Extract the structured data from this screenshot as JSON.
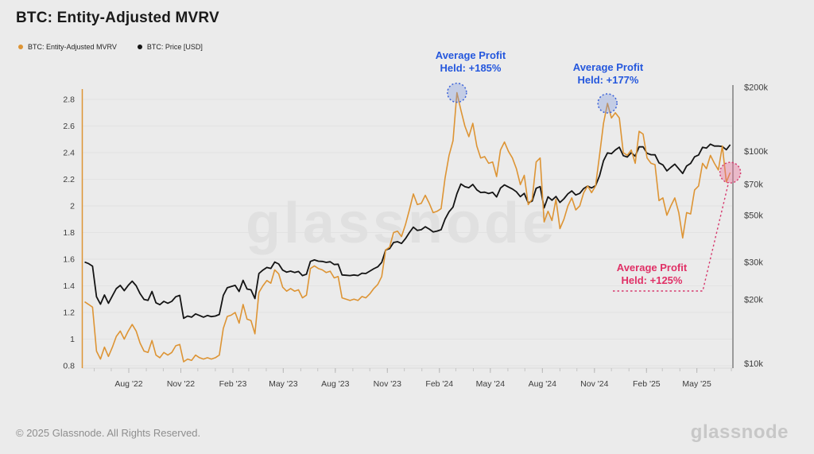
{
  "header": {
    "title": "BTC: Entity-Adjusted MVRV"
  },
  "legend": [
    {
      "label": "BTC: Entity-Adjusted MVRV",
      "color": "#dd9434"
    },
    {
      "label": "BTC: Price [USD]",
      "color": "#141414"
    }
  ],
  "watermark": "glassnode",
  "footer": {
    "copyright": "© 2025 Glassnode. All Rights Reserved.",
    "logo": "glassnode"
  },
  "chart_data": {
    "type": "line",
    "title": "BTC: Entity-Adjusted MVRV",
    "start_date": "2022-05-15",
    "interval_days": 7,
    "left_axis": {
      "scale": "linear",
      "range": [
        0.8,
        2.8
      ],
      "ticks": [
        0.8,
        1,
        1.2,
        1.4,
        1.6,
        1.8,
        2,
        2.2,
        2.4,
        2.6,
        2.8
      ]
    },
    "right_axis": {
      "scale": "log",
      "labels": [
        "$10k",
        "$20k",
        "$30k",
        "$50k",
        "$70k",
        "$100k",
        "$200k"
      ],
      "values_k": [
        10,
        20,
        30,
        50,
        70,
        100,
        200
      ]
    },
    "x_ticks": [
      {
        "label": "Aug '22",
        "date": "2022-08-01"
      },
      {
        "label": "Nov '22",
        "date": "2022-11-01"
      },
      {
        "label": "Feb '23",
        "date": "2023-02-01"
      },
      {
        "label": "May '23",
        "date": "2023-05-01"
      },
      {
        "label": "Aug '23",
        "date": "2023-08-01"
      },
      {
        "label": "Nov '23",
        "date": "2023-11-01"
      },
      {
        "label": "Feb '24",
        "date": "2024-02-01"
      },
      {
        "label": "May '24",
        "date": "2024-05-01"
      },
      {
        "label": "Aug '24",
        "date": "2024-08-01"
      },
      {
        "label": "Nov '24",
        "date": "2024-11-01"
      },
      {
        "label": "Feb '25",
        "date": "2025-02-01"
      },
      {
        "label": "May '25",
        "date": "2025-05-01"
      }
    ],
    "series": [
      {
        "name": "BTC: Entity-Adjusted MVRV",
        "axis": "left",
        "color": "#dd9434",
        "values": [
          1.28,
          1.26,
          1.24,
          0.91,
          0.85,
          0.94,
          0.87,
          0.94,
          1.02,
          1.06,
          1.0,
          1.06,
          1.11,
          1.06,
          0.97,
          0.91,
          0.9,
          0.99,
          0.88,
          0.86,
          0.9,
          0.88,
          0.9,
          0.95,
          0.96,
          0.83,
          0.85,
          0.84,
          0.88,
          0.86,
          0.85,
          0.86,
          0.85,
          0.86,
          0.88,
          1.08,
          1.17,
          1.18,
          1.2,
          1.12,
          1.26,
          1.15,
          1.14,
          1.04,
          1.35,
          1.4,
          1.44,
          1.42,
          1.52,
          1.49,
          1.39,
          1.36,
          1.38,
          1.36,
          1.37,
          1.31,
          1.33,
          1.53,
          1.55,
          1.53,
          1.52,
          1.5,
          1.51,
          1.46,
          1.47,
          1.31,
          1.3,
          1.29,
          1.3,
          1.29,
          1.32,
          1.31,
          1.34,
          1.38,
          1.41,
          1.47,
          1.67,
          1.69,
          1.8,
          1.81,
          1.77,
          1.86,
          1.97,
          2.09,
          2.01,
          2.02,
          2.08,
          2.02,
          1.95,
          1.96,
          1.98,
          2.21,
          2.38,
          2.49,
          2.85,
          2.72,
          2.6,
          2.52,
          2.62,
          2.45,
          2.36,
          2.37,
          2.32,
          2.33,
          2.22,
          2.42,
          2.48,
          2.41,
          2.36,
          2.28,
          2.16,
          2.23,
          2.01,
          2.05,
          2.33,
          2.36,
          1.88,
          1.96,
          1.89,
          2.05,
          1.83,
          1.9,
          2.0,
          2.06,
          1.97,
          2.0,
          2.1,
          2.15,
          2.1,
          2.15,
          2.38,
          2.62,
          2.77,
          2.66,
          2.7,
          2.66,
          2.4,
          2.38,
          2.42,
          2.32,
          2.56,
          2.54,
          2.36,
          2.32,
          2.31,
          2.04,
          2.06,
          1.93,
          2.0,
          2.06,
          1.95,
          1.76,
          1.95,
          1.94,
          2.12,
          2.15,
          2.32,
          2.28,
          2.38,
          2.32,
          2.27,
          2.45,
          2.18,
          2.25
        ]
      },
      {
        "name": "BTC: Price [USD]",
        "axis": "right",
        "color": "#141414",
        "values_k_usd": [
          30.0,
          29.5,
          28.7,
          20.6,
          19.0,
          21.0,
          19.2,
          20.8,
          22.5,
          23.3,
          22.0,
          23.3,
          24.4,
          23.2,
          21.3,
          20.0,
          19.8,
          21.8,
          19.3,
          18.9,
          19.6,
          19.2,
          19.6,
          20.6,
          20.9,
          16.3,
          16.7,
          16.5,
          17.1,
          16.8,
          16.5,
          16.8,
          16.6,
          16.7,
          17.0,
          20.9,
          22.7,
          23.0,
          23.3,
          21.8,
          24.6,
          22.4,
          22.2,
          20.2,
          26.5,
          27.5,
          28.3,
          28.0,
          30.0,
          29.4,
          27.5,
          26.9,
          27.2,
          26.8,
          27.1,
          25.9,
          26.3,
          30.2,
          30.7,
          30.3,
          30.2,
          29.9,
          30.1,
          29.2,
          29.3,
          26.1,
          26.0,
          25.9,
          26.1,
          25.9,
          26.6,
          26.5,
          27.2,
          27.9,
          28.5,
          29.9,
          34.2,
          34.7,
          37.1,
          37.4,
          36.7,
          38.7,
          41.3,
          43.8,
          42.3,
          42.6,
          44.0,
          42.9,
          41.6,
          42.0,
          42.6,
          47.8,
          51.8,
          54.5,
          63.0,
          70.0,
          68.0,
          67.2,
          69.6,
          65.7,
          63.8,
          64.0,
          63.1,
          63.9,
          60.8,
          66.9,
          69.3,
          67.7,
          66.3,
          64.3,
          61.0,
          63.2,
          57.0,
          58.2,
          66.8,
          68.0,
          54.0,
          60.9,
          58.7,
          61.1,
          57.3,
          59.6,
          62.9,
          64.9,
          62.1,
          63.2,
          66.6,
          68.4,
          67.0,
          68.7,
          76.5,
          90.0,
          98.0,
          97.2,
          101.2,
          104.3,
          95.1,
          93.7,
          98.2,
          94.6,
          104.8,
          104.7,
          97.6,
          96.1,
          96.0,
          88.0,
          86.1,
          80.7,
          83.8,
          86.8,
          82.5,
          78.4,
          85.1,
          87.5,
          94.0,
          95.9,
          104.1,
          103.2,
          107.8,
          105.6,
          105.7,
          105.0,
          101.5,
          107.1
        ]
      }
    ],
    "annotations": [
      {
        "lines": [
          "Average Profit",
          "Held: +185%"
        ],
        "date": "2024-03-03",
        "value": 2.85,
        "color": "blue"
      },
      {
        "lines": [
          "Average Profit",
          "Held: +177%"
        ],
        "date": "2024-11-24",
        "value": 2.77,
        "color": "blue"
      },
      {
        "lines": [
          "Average Profit",
          "Held: +125%"
        ],
        "date": "2025-06-29",
        "value": 2.25,
        "color": "pink"
      }
    ],
    "colors": {
      "mvrv": "#dd9434",
      "price": "#141414",
      "annotation_blue": "#2457dd",
      "annotation_pink": "#e03066",
      "background": "#ebebeb"
    },
    "legend_position": "top-left",
    "grid": "horizontal-faint"
  }
}
